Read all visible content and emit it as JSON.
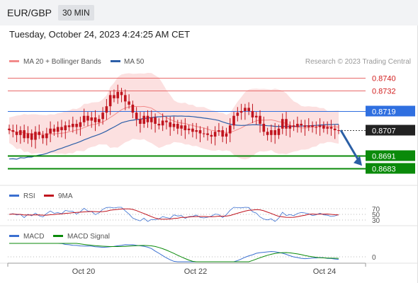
{
  "header": {
    "pair": "EUR/GBP",
    "timeframe": "30 MIN",
    "datetime": "Tuesday, October 24, 2023 4:24:25 AM CET"
  },
  "legend": {
    "ma20": "MA 20 + Bollinger Bands",
    "ma50": "MA 50",
    "credit": "Research © 2023 Trading Central",
    "rsi": "RSI",
    "rsi_ma": "9MA",
    "macd": "MACD",
    "macd_signal": "MACD Signal"
  },
  "colors": {
    "ma20": "#f28b8b",
    "ma50": "#2d5fa8",
    "resistance": "#e86a6a",
    "pivot": "#2f6fe0",
    "support": "#0a8a0a",
    "current": "#222222",
    "bollinger": "#fbdada",
    "candle": "#c0141e",
    "arrow": "#2b5fa5",
    "macd_line": "#3a6fd0",
    "signal_line": "#0a8a0a"
  },
  "price_levels": [
    {
      "value": "0.8740",
      "type": "resistance"
    },
    {
      "value": "0.8732",
      "type": "resistance"
    },
    {
      "value": "0.8719",
      "type": "pivot"
    },
    {
      "value": "0.8707",
      "type": "current"
    },
    {
      "value": "0.8691",
      "type": "support"
    },
    {
      "value": "0.8683",
      "type": "support"
    }
  ],
  "rsi_levels": [
    "70",
    "50",
    "30"
  ],
  "macd_levels": [
    "0"
  ],
  "x_ticks": [
    "Oct 20",
    "Oct 22",
    "Oct 24"
  ],
  "chart_data": {
    "type": "candlestick",
    "price_ylim": [
      0.8676,
      0.8746
    ],
    "closes": [
      0.8707,
      0.8706,
      0.8704,
      0.8707,
      0.8702,
      0.8705,
      0.8701,
      0.8706,
      0.8704,
      0.8702,
      0.8705,
      0.8708,
      0.8706,
      0.8709,
      0.8707,
      0.871,
      0.8709,
      0.8711,
      0.8709,
      0.8712,
      0.8716,
      0.8713,
      0.8715,
      0.8712,
      0.8714,
      0.8718,
      0.8722,
      0.8729,
      0.8727,
      0.8731,
      0.8729,
      0.8725,
      0.8723,
      0.8718,
      0.8714,
      0.8711,
      0.8716,
      0.8712,
      0.8715,
      0.8711,
      0.871,
      0.8713,
      0.8712,
      0.8709,
      0.8711,
      0.8708,
      0.871,
      0.8707,
      0.8708,
      0.8706,
      0.8707,
      0.8705,
      0.8705,
      0.8704,
      0.8703,
      0.8706,
      0.8707,
      0.8703,
      0.8705,
      0.871,
      0.8716,
      0.8718,
      0.8719,
      0.8721,
      0.8719,
      0.8715,
      0.8716,
      0.8711,
      0.8706,
      0.8704,
      0.8707,
      0.8704,
      0.8708,
      0.8714,
      0.8708,
      0.871,
      0.8709,
      0.8711,
      0.871,
      0.8709,
      0.871,
      0.8709,
      0.8709,
      0.871,
      0.8708,
      0.8709,
      0.8708,
      0.8707,
      0.8707
    ],
    "arrow_target": 0.8683,
    "rsi": {
      "range": [
        30,
        70
      ],
      "levels": [
        70,
        50,
        30
      ]
    },
    "macd": {
      "zero": 0
    }
  }
}
